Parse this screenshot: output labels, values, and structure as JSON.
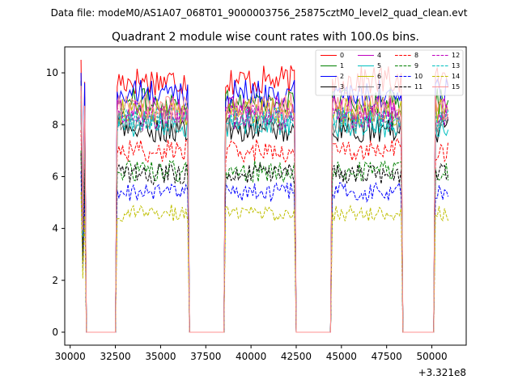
{
  "figure": {
    "suptitle": "Data file: modeM0/AS1A07_068T01_9000003756_25875cztM0_level2_quad_clean.evt",
    "offset_text": "+3.321e8"
  },
  "chart_data": {
    "type": "line",
    "title": "Quadrant 2 module wise count rates with 100.0s bins.",
    "xlabel": "",
    "ylabel": "",
    "x_offset": 332100000,
    "xlim": [
      29700,
      51900
    ],
    "ylim": [
      -0.5,
      11.0
    ],
    "xticks": [
      30000,
      32500,
      35000,
      37500,
      40000,
      42500,
      45000,
      47500,
      50000
    ],
    "yticks": [
      0,
      2,
      4,
      6,
      8,
      10
    ],
    "grid": false,
    "legend_position": "top-right",
    "legend_columns": 4,
    "bin_seconds": 100,
    "gaps": [
      [
        30800,
        32600
      ],
      [
        36500,
        38600
      ],
      [
        42400,
        44500
      ],
      [
        48300,
        50200
      ]
    ],
    "segments": [
      [
        30600,
        30800
      ],
      [
        32600,
        36500
      ],
      [
        38600,
        42400
      ],
      [
        44500,
        48300
      ],
      [
        50200,
        50900
      ]
    ],
    "series": [
      {
        "name": "0",
        "level": 9.7,
        "color": "#ff0000",
        "dash": "solid"
      },
      {
        "name": "1",
        "level": 8.9,
        "color": "#008000",
        "dash": "solid"
      },
      {
        "name": "2",
        "level": 9.2,
        "color": "#0000ff",
        "dash": "solid"
      },
      {
        "name": "3",
        "level": 7.8,
        "color": "#000000",
        "dash": "solid"
      },
      {
        "name": "4",
        "level": 8.6,
        "color": "#bf00bf",
        "dash": "solid"
      },
      {
        "name": "5",
        "level": 8.0,
        "color": "#00bfbf",
        "dash": "solid"
      },
      {
        "name": "6",
        "level": 8.5,
        "color": "#bfbf00",
        "dash": "solid"
      },
      {
        "name": "7",
        "level": 8.1,
        "color": "#808080",
        "dash": "solid"
      },
      {
        "name": "8",
        "level": 7.0,
        "color": "#ff0000",
        "dash": "dashed"
      },
      {
        "name": "9",
        "level": 6.2,
        "color": "#008000",
        "dash": "dashed"
      },
      {
        "name": "10",
        "level": 5.4,
        "color": "#0000ff",
        "dash": "dashed"
      },
      {
        "name": "11",
        "level": 6.1,
        "color": "#000000",
        "dash": "dashed"
      },
      {
        "name": "12",
        "level": 8.3,
        "color": "#bf00bf",
        "dash": "dashed"
      },
      {
        "name": "13",
        "level": 8.2,
        "color": "#00bfbf",
        "dash": "dashed"
      },
      {
        "name": "14",
        "level": 4.6,
        "color": "#bfbf00",
        "dash": "dashed"
      },
      {
        "name": "15",
        "level": 8.7,
        "color": "#ff9090",
        "dash": "solid"
      }
    ]
  }
}
